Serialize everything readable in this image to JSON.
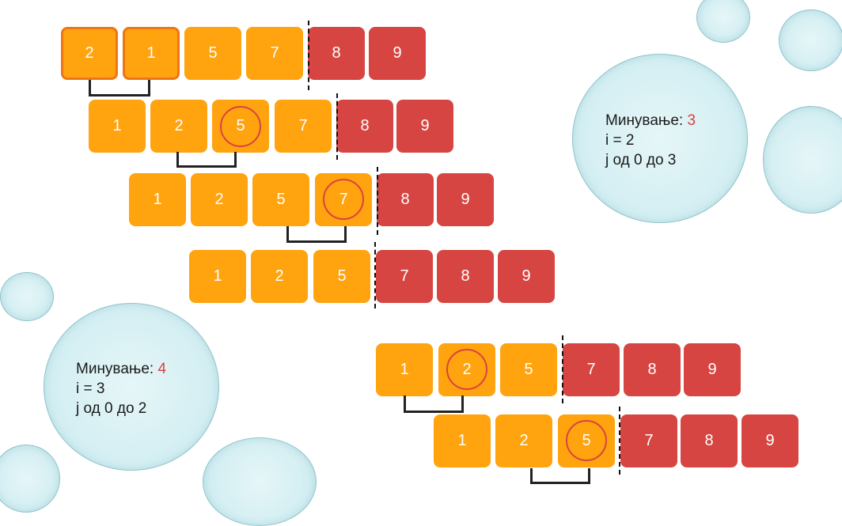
{
  "info_top": {
    "label": "Минување:",
    "pass": "3",
    "i_line": "i = 2",
    "j_line": "j од 0 до 3"
  },
  "info_bottom": {
    "label": "Минување:",
    "pass": "4",
    "i_line": "i = 3",
    "j_line": "j од 0 до 2"
  },
  "rows": [
    [
      "2",
      "1",
      "5",
      "7",
      "8",
      "9"
    ],
    [
      "1",
      "2",
      "5",
      "7",
      "8",
      "9"
    ],
    [
      "1",
      "2",
      "5",
      "7",
      "8",
      "9"
    ],
    [
      "1",
      "2",
      "5",
      "7",
      "8",
      "9"
    ],
    [
      "1",
      "2",
      "5",
      "7",
      "8",
      "9"
    ],
    [
      "1",
      "2",
      "5",
      "7",
      "8",
      "9"
    ]
  ],
  "colors": {
    "unsorted": "#ffa30f",
    "sorted": "#d64541",
    "highlight_border": "#ee7616",
    "circle": "#d9433f"
  }
}
